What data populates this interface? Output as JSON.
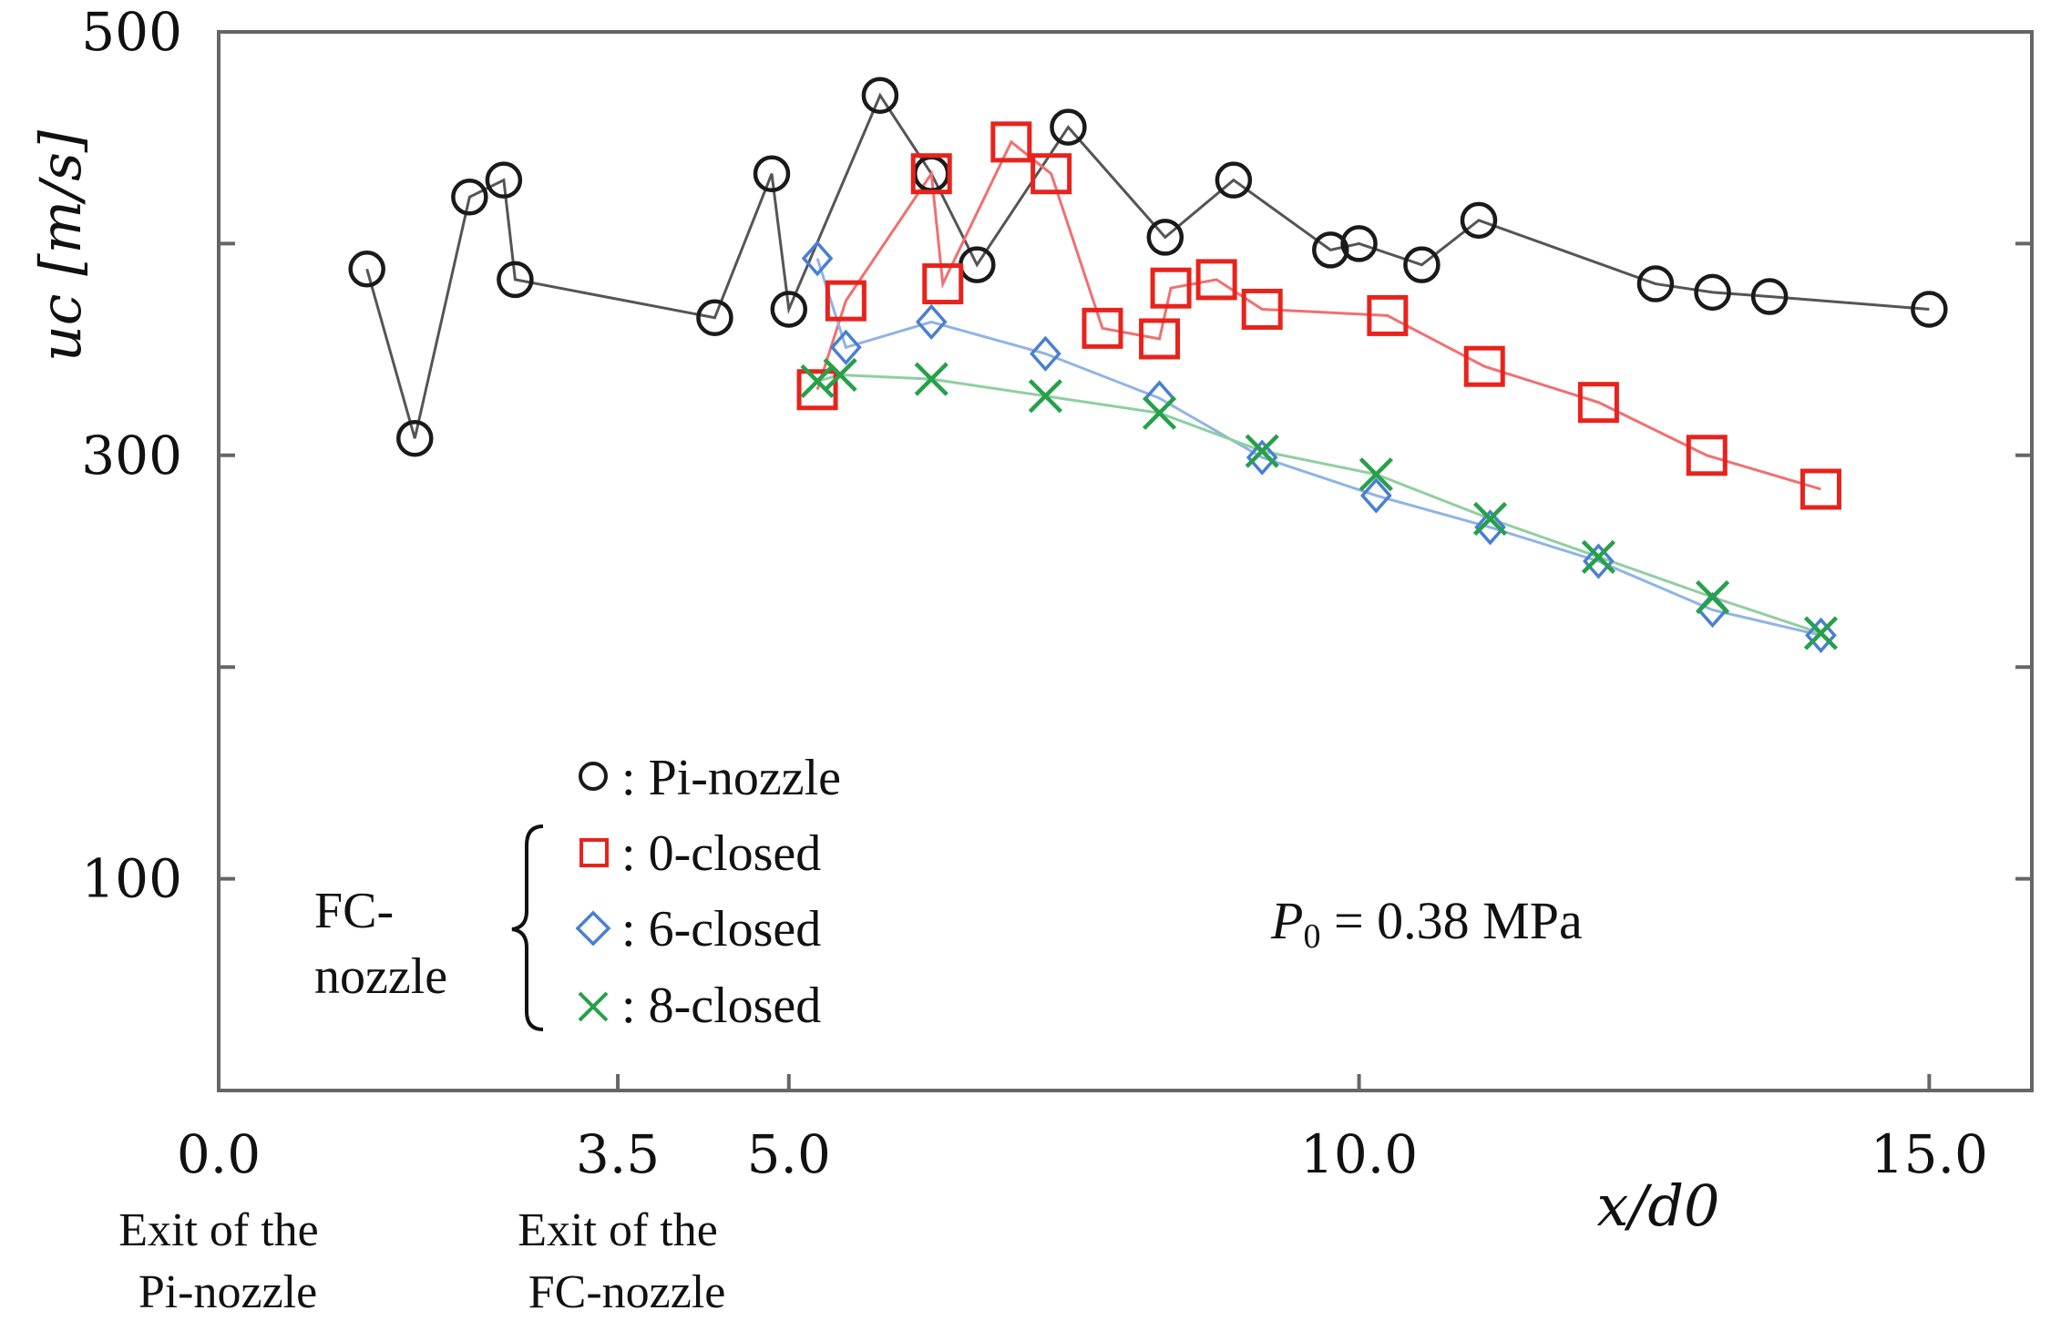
{
  "chart_data": {
    "type": "line",
    "title": "",
    "xlabel": "x/d0",
    "ylabel": "uc [m/s]",
    "xlim": [
      0,
      15.9
    ],
    "ylim": [
      0,
      500
    ],
    "x_ticks": [
      {
        "value": 0.0,
        "label": "0.0"
      },
      {
        "value": 3.5,
        "label": "3.5"
      },
      {
        "value": 5.0,
        "label": "5.0"
      },
      {
        "value": 10.0,
        "label": "10.0"
      },
      {
        "value": 15.0,
        "label": "15.0"
      }
    ],
    "y_ticks": [
      {
        "value": 100,
        "label": "100"
      },
      {
        "value": 300,
        "label": "300"
      },
      {
        "value": 500,
        "label": "500"
      }
    ],
    "y_minor_ticks": [
      200,
      400
    ],
    "x_notes": [
      {
        "x": 0.0,
        "lines": [
          "Exit of the",
          "Pi-nozzle"
        ]
      },
      {
        "x": 3.5,
        "lines": [
          "Exit of the",
          "FC-nozzle"
        ]
      }
    ],
    "annotation": {
      "symbol": "P",
      "subscript": "0",
      "text": " = 0.38 MPa"
    },
    "legend_group": {
      "lines": [
        "FC-",
        "nozzle"
      ]
    },
    "series": [
      {
        "name": "Pi-nozzle",
        "marker": "circle",
        "color": "#1a1a1a",
        "line_color": "#555555",
        "points": [
          [
            1.3,
            388
          ],
          [
            1.72,
            308
          ],
          [
            2.2,
            422
          ],
          [
            2.5,
            430
          ],
          [
            2.6,
            383
          ],
          [
            4.35,
            365
          ],
          [
            4.85,
            433
          ],
          [
            5.0,
            369
          ],
          [
            5.8,
            470
          ],
          [
            6.25,
            433
          ],
          [
            6.65,
            390
          ],
          [
            7.45,
            455
          ],
          [
            8.3,
            403
          ],
          [
            8.9,
            430
          ],
          [
            9.75,
            397
          ],
          [
            10.0,
            400
          ],
          [
            10.55,
            390
          ],
          [
            11.05,
            411
          ],
          [
            12.6,
            381
          ],
          [
            13.1,
            377
          ],
          [
            13.6,
            375
          ],
          [
            15.0,
            369
          ]
        ]
      },
      {
        "name": "0-closed",
        "marker": "square",
        "color": "#e8231c",
        "line_color": "#f07070",
        "points": [
          [
            5.25,
            331
          ],
          [
            5.5,
            373
          ],
          [
            6.25,
            433
          ],
          [
            6.35,
            381
          ],
          [
            6.95,
            448
          ],
          [
            7.3,
            433
          ],
          [
            7.75,
            360
          ],
          [
            8.25,
            355
          ],
          [
            8.35,
            379
          ],
          [
            8.75,
            383
          ],
          [
            9.15,
            369
          ],
          [
            10.25,
            366
          ],
          [
            11.1,
            342
          ],
          [
            12.1,
            325
          ],
          [
            13.05,
            300
          ],
          [
            14.05,
            284
          ]
        ]
      },
      {
        "name": "6-closed",
        "marker": "diamond",
        "color": "#4a7fd1",
        "line_color": "#8fb3e6",
        "points": [
          [
            5.25,
            393
          ],
          [
            5.5,
            351
          ],
          [
            6.25,
            363
          ],
          [
            7.25,
            348
          ],
          [
            8.25,
            327
          ],
          [
            9.15,
            299
          ],
          [
            10.15,
            281
          ],
          [
            11.15,
            266
          ],
          [
            12.1,
            250
          ],
          [
            13.1,
            227
          ],
          [
            14.05,
            215
          ]
        ]
      },
      {
        "name": "8-closed",
        "marker": "cross",
        "color": "#27a04a",
        "line_color": "#8fcf9f",
        "points": [
          [
            5.25,
            335
          ],
          [
            5.45,
            338
          ],
          [
            6.25,
            336
          ],
          [
            7.25,
            328
          ],
          [
            8.25,
            320
          ],
          [
            9.15,
            302
          ],
          [
            10.15,
            291
          ],
          [
            11.15,
            270
          ],
          [
            12.1,
            252
          ],
          [
            13.1,
            233
          ],
          [
            14.05,
            216
          ]
        ]
      }
    ]
  }
}
